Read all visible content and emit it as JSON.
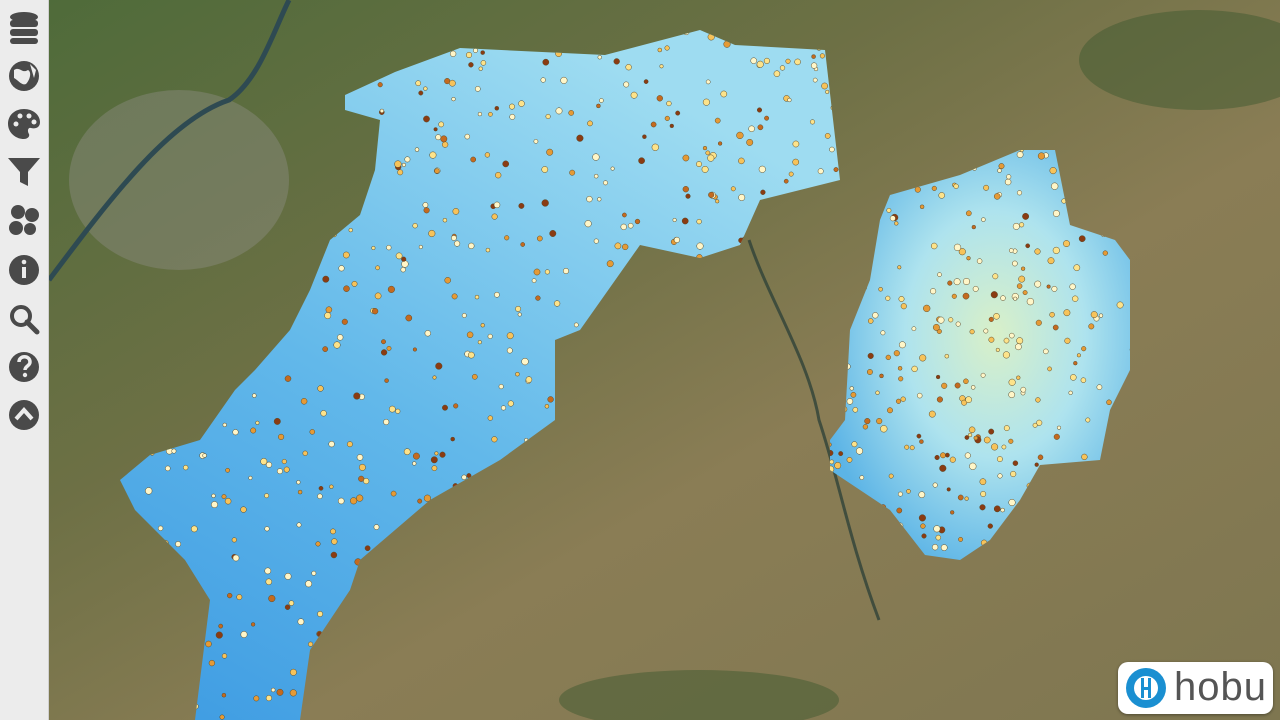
{
  "logo": {
    "text": "hobu"
  }
}
